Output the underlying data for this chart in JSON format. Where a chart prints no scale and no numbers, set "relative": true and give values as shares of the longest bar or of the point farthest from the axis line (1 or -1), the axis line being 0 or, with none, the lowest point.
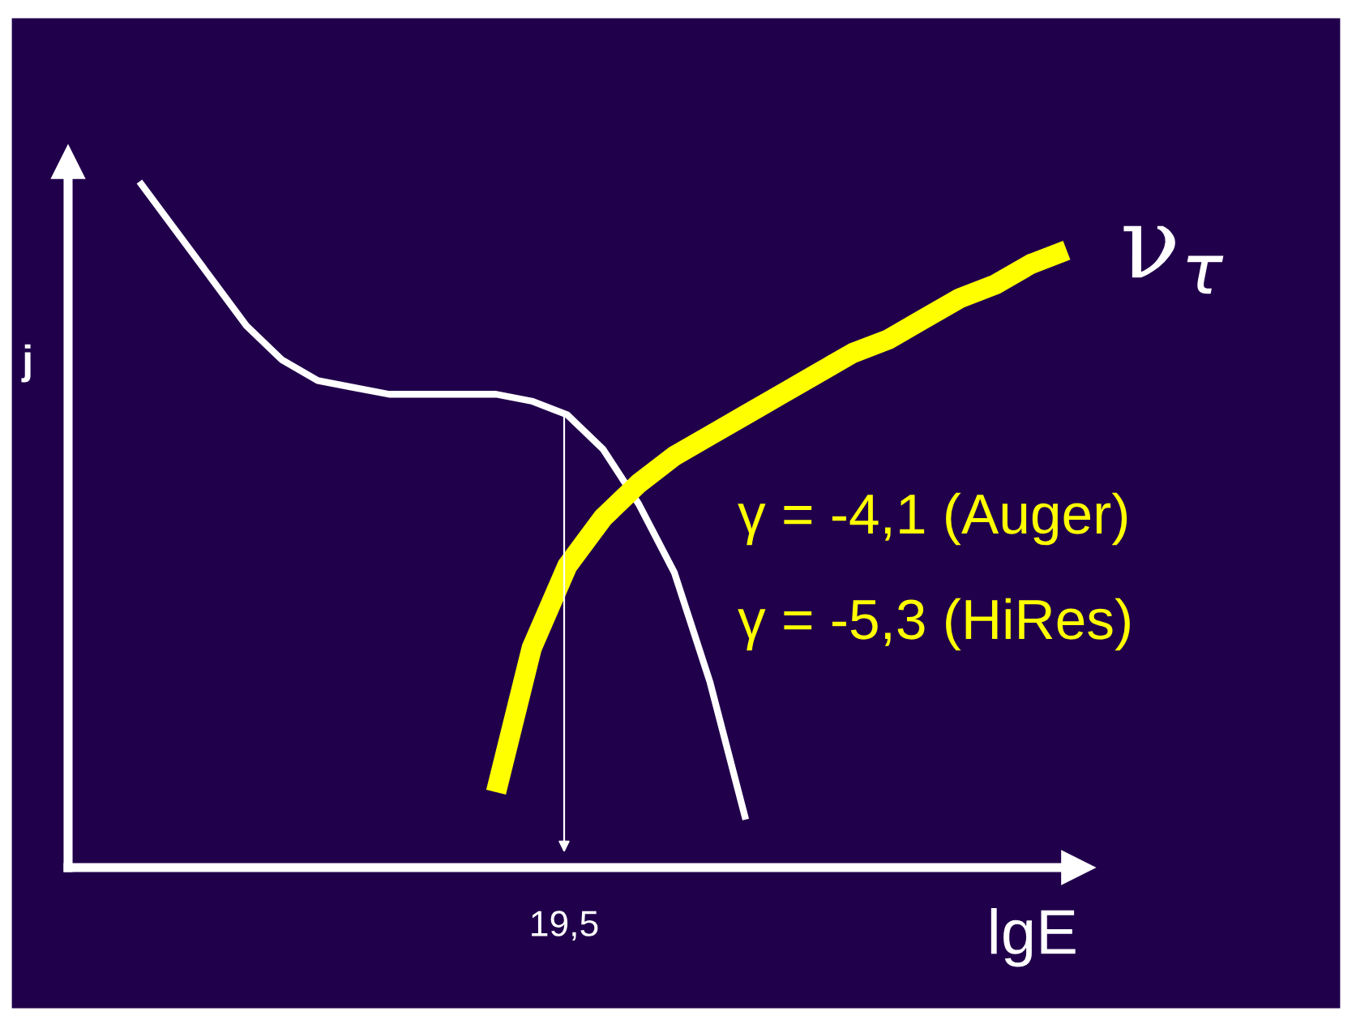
{
  "chart_data": {
    "type": "line",
    "relative": true,
    "xlabel": "lgE",
    "ylabel": "j",
    "categories": [
      null,
      null,
      null,
      null,
      null,
      null,
      null,
      null,
      null,
      null,
      null,
      null,
      null,
      null,
      null,
      null,
      null,
      null,
      null,
      null,
      null,
      null,
      null,
      null,
      null,
      null,
      null,
      null,
      null
    ],
    "series": [
      {
        "color": "#ffffff",
        "values": [
          null,
          null,
          1.0,
          0.93,
          0.86,
          0.79,
          0.74,
          0.71,
          0.7,
          0.69,
          0.69,
          0.69,
          0.69,
          0.68,
          0.66,
          0.61,
          0.53,
          0.43,
          0.27,
          0.07,
          null,
          null,
          null,
          null,
          null,
          null,
          null,
          null,
          null
        ]
      },
      {
        "name": "ν$_{τ}$",
        "color": "#ffff00",
        "values": [
          null,
          null,
          null,
          null,
          null,
          null,
          null,
          null,
          null,
          null,
          null,
          null,
          0.11,
          0.32,
          0.44,
          0.51,
          0.56,
          0.6,
          0.63,
          0.66,
          0.69,
          0.72,
          0.75,
          0.77,
          0.8,
          0.83,
          0.85,
          0.88,
          0.9
        ]
      }
    ],
    "annotations": [
      "19,5",
      "γ = -4,1 (Auger)",
      "γ = -5,3 (HiRes)"
    ],
    "marker": "none",
    "line_style": "solid"
  }
}
